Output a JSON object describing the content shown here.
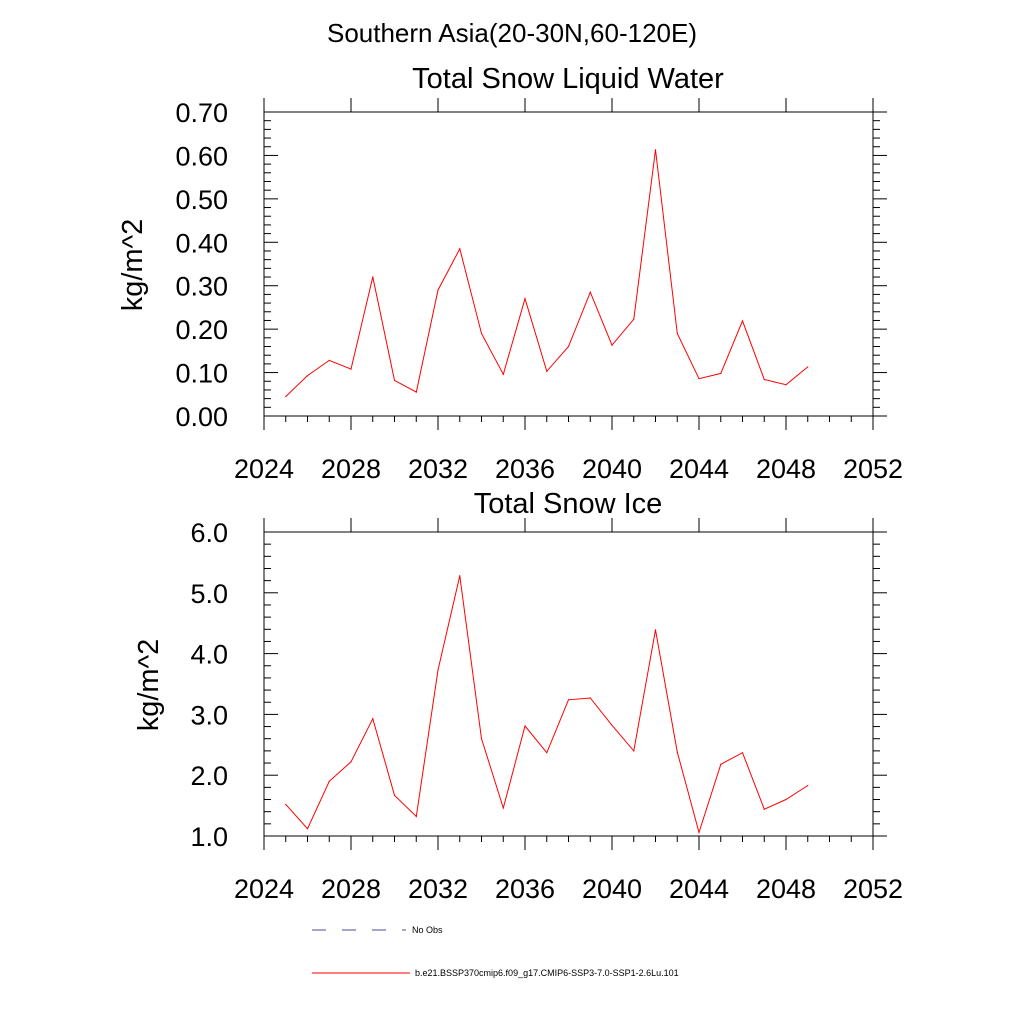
{
  "figure": {
    "suptitle": "Southern Asia(20-30N,60-120E)",
    "line_color": "#ff0000",
    "obs_color": "#4a4aa0"
  },
  "chart_data": [
    {
      "type": "line",
      "title": "Total Snow Liquid Water",
      "ylabel": "kg/m^2",
      "xlabel": "",
      "xlim": [
        2024,
        2052
      ],
      "ylim": [
        0.0,
        0.7
      ],
      "xticks": [
        2024,
        2028,
        2032,
        2036,
        2040,
        2044,
        2048,
        2052
      ],
      "yticks": [
        "0.00",
        "0.10",
        "0.20",
        "0.30",
        "0.40",
        "0.50",
        "0.60",
        "0.70"
      ],
      "grid": false,
      "x": [
        2025,
        2026,
        2027,
        2028,
        2029,
        2030,
        2031,
        2032,
        2033,
        2034,
        2035,
        2036,
        2037,
        2038,
        2039,
        2040,
        2041,
        2042,
        2043,
        2044,
        2045,
        2046,
        2047,
        2048,
        2049
      ],
      "series": [
        {
          "name": "b.e21.BSSP370cmip6.f09_g17.CMIP6-SSP3-7.0-SSP1-2.6Lu.101",
          "values": [
            0.045,
            0.093,
            0.128,
            0.108,
            0.32,
            0.082,
            0.055,
            0.29,
            0.385,
            0.19,
            0.096,
            0.27,
            0.103,
            0.16,
            0.285,
            0.163,
            0.223,
            0.613,
            0.19,
            0.086,
            0.098,
            0.219,
            0.084,
            0.072,
            0.113
          ]
        }
      ]
    },
    {
      "type": "line",
      "title": "Total Snow Ice",
      "ylabel": "kg/m^2",
      "xlabel": "",
      "xlim": [
        2024,
        2052
      ],
      "ylim": [
        1.0,
        6.0
      ],
      "xticks": [
        2024,
        2028,
        2032,
        2036,
        2040,
        2044,
        2048,
        2052
      ],
      "yticks": [
        "1.0",
        "2.0",
        "3.0",
        "4.0",
        "5.0",
        "6.0"
      ],
      "grid": false,
      "x": [
        2025,
        2026,
        2027,
        2028,
        2029,
        2030,
        2031,
        2032,
        2033,
        2034,
        2035,
        2036,
        2037,
        2038,
        2039,
        2040,
        2041,
        2042,
        2043,
        2044,
        2045,
        2046,
        2047,
        2048,
        2049
      ],
      "series": [
        {
          "name": "b.e21.BSSP370cmip6.f09_g17.CMIP6-SSP3-7.0-SSP1-2.6Lu.101",
          "values": [
            1.52,
            1.12,
            1.9,
            2.22,
            2.93,
            1.67,
            1.32,
            3.73,
            5.28,
            2.6,
            1.46,
            2.81,
            2.37,
            3.24,
            3.27,
            2.82,
            2.4,
            4.39,
            2.38,
            1.06,
            2.18,
            2.37,
            1.44,
            1.6,
            1.83
          ]
        }
      ]
    }
  ],
  "legend": {
    "placement": "bottom",
    "items": [
      {
        "label": "No Obs",
        "style": "dashed"
      },
      {
        "label": "b.e21.BSSP370cmip6.f09_g17.CMIP6-SSP3-7.0-SSP1-2.6Lu.101",
        "style": "solid"
      }
    ]
  }
}
